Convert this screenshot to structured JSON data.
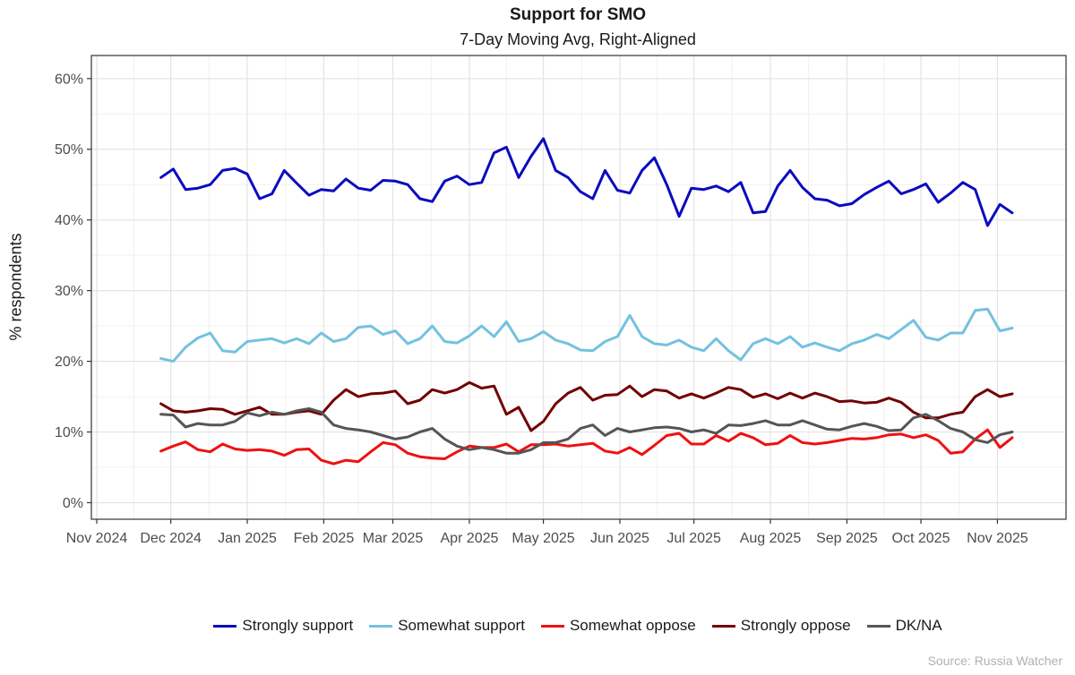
{
  "chart_data": {
    "type": "line",
    "title": "Support for SMO",
    "subtitle": "7-Day Moving Avg, Right-Aligned",
    "xlabel": "",
    "ylabel": "% respondents",
    "source": "Source: Russia Watcher",
    "x_range": [
      "2024-11-01",
      "2025-11-23"
    ],
    "ylim": [
      0,
      62
    ],
    "yticks": [
      0,
      10,
      20,
      30,
      40,
      50,
      60
    ],
    "ytick_labels": [
      "0%",
      "10%",
      "20%",
      "30%",
      "40%",
      "50%",
      "60%"
    ],
    "xticks": [
      {
        "date": "2024-11-01",
        "label": "Nov 2024"
      },
      {
        "date": "2024-12-01",
        "label": "Dec 2024"
      },
      {
        "date": "2025-01-01",
        "label": "Jan 2025"
      },
      {
        "date": "2025-02-01",
        "label": "Feb 2025"
      },
      {
        "date": "2025-03-01",
        "label": "Mar 2025"
      },
      {
        "date": "2025-04-01",
        "label": "Apr 2025"
      },
      {
        "date": "2025-05-01",
        "label": "May 2025"
      },
      {
        "date": "2025-06-01",
        "label": "Jun 2025"
      },
      {
        "date": "2025-07-01",
        "label": "Jul 2025"
      },
      {
        "date": "2025-08-01",
        "label": "Aug 2025"
      },
      {
        "date": "2025-09-01",
        "label": "Sep 2025"
      },
      {
        "date": "2025-10-01",
        "label": "Oct 2025"
      },
      {
        "date": "2025-11-01",
        "label": "Nov 2025"
      }
    ],
    "grid": true,
    "legend_position": "bottom",
    "x": [
      "2024-11-27",
      "2024-12-02",
      "2024-12-07",
      "2024-12-12",
      "2024-12-17",
      "2024-12-22",
      "2024-12-27",
      "2025-01-01",
      "2025-01-06",
      "2025-01-11",
      "2025-01-16",
      "2025-01-21",
      "2025-01-26",
      "2025-01-31",
      "2025-02-05",
      "2025-02-10",
      "2025-02-15",
      "2025-02-20",
      "2025-02-25",
      "2025-03-02",
      "2025-03-07",
      "2025-03-12",
      "2025-03-17",
      "2025-03-22",
      "2025-03-27",
      "2025-04-01",
      "2025-04-06",
      "2025-04-11",
      "2025-04-16",
      "2025-04-21",
      "2025-04-26",
      "2025-05-01",
      "2025-05-06",
      "2025-05-11",
      "2025-05-16",
      "2025-05-21",
      "2025-05-26",
      "2025-05-31",
      "2025-06-05",
      "2025-06-10",
      "2025-06-15",
      "2025-06-20",
      "2025-06-25",
      "2025-06-30",
      "2025-07-05",
      "2025-07-10",
      "2025-07-15",
      "2025-07-20",
      "2025-07-25",
      "2025-07-30",
      "2025-08-04",
      "2025-08-09",
      "2025-08-14",
      "2025-08-19",
      "2025-08-24",
      "2025-08-29",
      "2025-09-03",
      "2025-09-08",
      "2025-09-13",
      "2025-09-18",
      "2025-09-23",
      "2025-09-28",
      "2025-10-03",
      "2025-10-08",
      "2025-10-13",
      "2025-10-18",
      "2025-10-23",
      "2025-10-28",
      "2025-11-02",
      "2025-11-07"
    ],
    "series": [
      {
        "name": "Strongly support",
        "color": "#0b0bbf",
        "values": [
          46.0,
          47.2,
          44.3,
          44.5,
          45.0,
          47.0,
          47.3,
          46.5,
          43.0,
          43.7,
          47.0,
          45.2,
          43.5,
          44.3,
          44.1,
          45.8,
          44.5,
          44.2,
          45.6,
          45.5,
          45.0,
          43.0,
          42.6,
          45.5,
          46.2,
          45.0,
          45.3,
          49.5,
          50.3,
          46.0,
          49.0,
          51.5,
          47.0,
          46.0,
          44.0,
          43.0,
          47.0,
          44.2,
          43.8,
          47.0,
          48.8,
          45.0,
          40.5,
          44.5,
          44.3,
          44.8,
          44.0,
          45.3,
          41.0,
          41.2,
          44.8,
          47.0,
          44.6,
          43.0,
          42.8,
          42.0,
          42.3,
          43.6,
          44.6,
          45.5,
          43.7,
          44.3,
          45.1,
          42.5,
          43.8,
          45.3,
          44.3,
          39.2,
          42.2,
          41.0
        ]
      },
      {
        "name": "Somewhat support",
        "color": "#74c1e0",
        "values": [
          20.4,
          20.0,
          22.0,
          23.3,
          24.0,
          21.5,
          21.3,
          22.8,
          23.0,
          23.2,
          22.6,
          23.2,
          22.5,
          24.0,
          22.8,
          23.2,
          24.8,
          25.0,
          23.8,
          24.3,
          22.5,
          23.2,
          25.0,
          22.8,
          22.6,
          23.6,
          25.0,
          23.5,
          25.6,
          22.8,
          23.2,
          24.2,
          23.0,
          22.5,
          21.6,
          21.5,
          22.8,
          23.5,
          26.5,
          23.5,
          22.5,
          22.3,
          23.0,
          22.0,
          21.5,
          23.2,
          21.5,
          20.2,
          22.5,
          23.2,
          22.5,
          23.5,
          22.0,
          22.6,
          22.0,
          21.5,
          22.5,
          23.0,
          23.8,
          23.2,
          24.5,
          25.8,
          23.4,
          23.0,
          24.0,
          24.0,
          27.2,
          27.4,
          24.3,
          24.7
        ]
      },
      {
        "name": "Somewhat oppose",
        "color": "#ee1111",
        "values": [
          7.3,
          8.0,
          8.6,
          7.5,
          7.2,
          8.3,
          7.6,
          7.4,
          7.5,
          7.3,
          6.7,
          7.5,
          7.6,
          6.0,
          5.5,
          6.0,
          5.8,
          7.2,
          8.5,
          8.2,
          7.0,
          6.5,
          6.3,
          6.2,
          7.2,
          8.0,
          7.8,
          7.8,
          8.3,
          7.2,
          8.2,
          8.2,
          8.3,
          8.0,
          8.2,
          8.4,
          7.3,
          7.0,
          7.8,
          6.8,
          8.1,
          9.5,
          9.8,
          8.3,
          8.3,
          9.5,
          8.7,
          9.8,
          9.2,
          8.2,
          8.4,
          9.5,
          8.5,
          8.3,
          8.5,
          8.8,
          9.1,
          9.0,
          9.2,
          9.6,
          9.7,
          9.2,
          9.6,
          8.8,
          7.0,
          7.2,
          9.0,
          10.3,
          7.8,
          9.2
        ]
      },
      {
        "name": "Strongly oppose",
        "color": "#720000",
        "values": [
          14.0,
          13.0,
          12.8,
          13.0,
          13.3,
          13.2,
          12.5,
          13.0,
          13.5,
          12.5,
          12.5,
          12.8,
          13.0,
          12.5,
          14.5,
          16.0,
          15.0,
          15.4,
          15.5,
          15.8,
          14.0,
          14.5,
          16.0,
          15.5,
          16.0,
          17.0,
          16.2,
          16.5,
          12.5,
          13.5,
          10.2,
          11.5,
          14.0,
          15.5,
          16.3,
          14.5,
          15.2,
          15.3,
          16.5,
          15.0,
          16.0,
          15.8,
          14.8,
          15.4,
          14.8,
          15.5,
          16.3,
          16.0,
          14.9,
          15.4,
          14.7,
          15.5,
          14.8,
          15.5,
          15.0,
          14.3,
          14.4,
          14.1,
          14.2,
          14.8,
          14.2,
          12.8,
          12.0,
          12.0,
          12.5,
          12.8,
          15.0,
          16.0,
          15.0,
          15.4
        ]
      },
      {
        "name": "DK/NA",
        "color": "#555555",
        "values": [
          12.5,
          12.4,
          10.7,
          11.2,
          11.0,
          11.0,
          11.5,
          12.7,
          12.3,
          12.8,
          12.5,
          13.0,
          13.3,
          12.8,
          11.0,
          10.5,
          10.3,
          10.0,
          9.5,
          9.0,
          9.3,
          10.0,
          10.5,
          9.0,
          8.0,
          7.5,
          7.8,
          7.5,
          7.0,
          7.0,
          7.5,
          8.5,
          8.5,
          9.0,
          10.5,
          11.0,
          9.5,
          10.5,
          10.0,
          10.3,
          10.6,
          10.7,
          10.5,
          10.0,
          10.3,
          9.8,
          11.0,
          10.9,
          11.2,
          11.6,
          11.0,
          11.0,
          11.6,
          11.0,
          10.4,
          10.3,
          10.8,
          11.2,
          10.8,
          10.2,
          10.3,
          12.0,
          12.5,
          11.6,
          10.5,
          10.0,
          8.9,
          8.5,
          9.6,
          10.0
        ]
      }
    ]
  }
}
